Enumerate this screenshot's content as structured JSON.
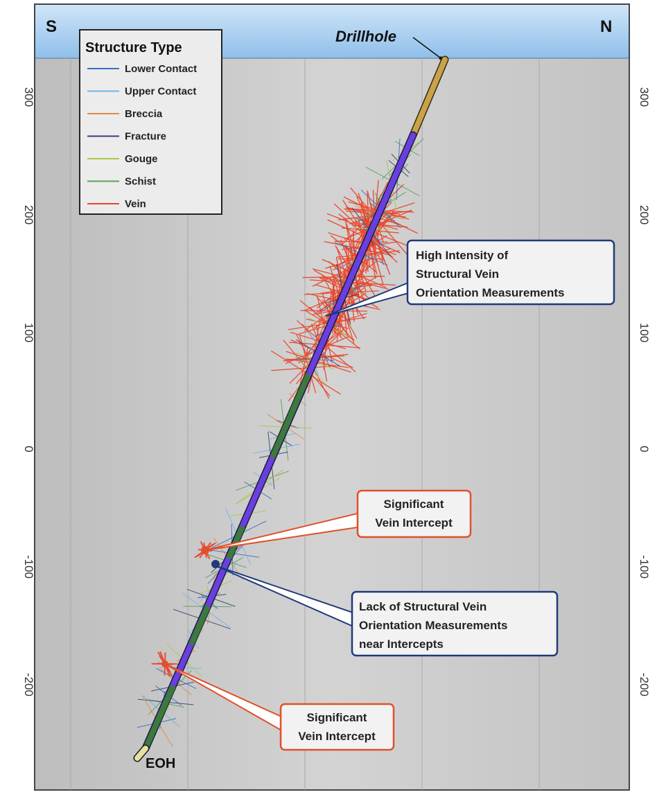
{
  "compass": {
    "south": "S",
    "north": "N"
  },
  "drillhole_label": "Drillhole",
  "eoh_label": "EOH",
  "legend": {
    "title": "Structure Type",
    "items": [
      {
        "label": "Lower Contact",
        "color": "#3c6cc0"
      },
      {
        "label": "Upper Contact",
        "color": "#6fb3e8"
      },
      {
        "label": "Breccia",
        "color": "#e08a4a"
      },
      {
        "label": "Fracture",
        "color": "#3a3f73"
      },
      {
        "label": "Gouge",
        "color": "#a9c84a"
      },
      {
        "label": "Schist",
        "color": "#5aa05a"
      },
      {
        "label": "Vein",
        "color": "#e8452a"
      }
    ]
  },
  "axis_ticks": [
    "300",
    "200",
    "100",
    "0",
    "-100",
    "-200"
  ],
  "callouts": {
    "high_intensity": {
      "lines": [
        "High Intensity of",
        "Structural Vein",
        "Orientation Measurements"
      ],
      "border": "#1f3a7a"
    },
    "intercept_upper": {
      "lines": [
        "Significant",
        "Vein Intercept"
      ],
      "border": "#e0502a"
    },
    "lack_of": {
      "lines": [
        "Lack of Structural Vein",
        "Orientation Measurements",
        "near Intercepts"
      ],
      "border": "#1f3a7a"
    },
    "intercept_lower": {
      "lines": [
        "Significant",
        "Vein Intercept"
      ],
      "border": "#e0502a"
    }
  },
  "colors": {
    "sky": "#9cc8ee",
    "panel": "#c9c9c9",
    "drillhole_tube": "#6a3fe0",
    "collar": "#c9a24a",
    "schist_tube": "#3b7a3b"
  }
}
